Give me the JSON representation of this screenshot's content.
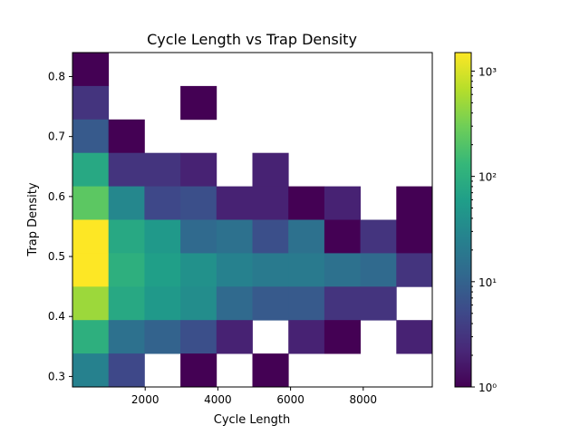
{
  "chart_data": {
    "type": "heatmap",
    "title": "Cycle Length vs Trap Density",
    "xlabel": "Cycle Length",
    "ylabel": "Trap Density",
    "x_range": [
      0,
      9900
    ],
    "y_range": [
      0.2825,
      0.84
    ],
    "x_edges": [
      0,
      990,
      1980,
      2970,
      3960,
      4950,
      5940,
      6930,
      7920,
      8910,
      9900
    ],
    "y_edges": [
      0.2825,
      0.33825,
      0.394,
      0.44975,
      0.5055,
      0.56125,
      0.617,
      0.67275,
      0.7285,
      0.78425,
      0.84
    ],
    "x_ticks": [
      2000,
      4000,
      6000,
      8000
    ],
    "y_ticks": [
      0.3,
      0.4,
      0.5,
      0.6,
      0.7,
      0.8
    ],
    "colorbar": {
      "scale": "log",
      "vmin": 1,
      "vmax": 1500,
      "ticks": [
        1,
        10,
        100,
        1000
      ],
      "tick_labels": [
        "10⁰",
        "10¹",
        "10²",
        "10³"
      ],
      "colormap": "viridis"
    },
    "counts_top_to_bottom": [
      [
        1,
        null,
        null,
        null,
        null,
        null,
        null,
        null,
        null,
        null
      ],
      [
        3,
        null,
        null,
        1,
        null,
        null,
        null,
        null,
        null,
        null
      ],
      [
        8,
        1,
        null,
        null,
        null,
        null,
        null,
        null,
        null,
        null
      ],
      [
        80,
        3,
        3,
        2,
        null,
        2,
        null,
        null,
        null,
        null
      ],
      [
        230,
        30,
        5,
        6,
        2,
        2,
        1,
        2,
        null,
        1
      ],
      [
        1500,
        80,
        50,
        12,
        15,
        6,
        15,
        1,
        3,
        1
      ],
      [
        1500,
        100,
        60,
        40,
        25,
        20,
        20,
        15,
        12,
        3
      ],
      [
        500,
        80,
        50,
        35,
        12,
        8,
        8,
        3,
        3,
        null
      ],
      [
        100,
        15,
        10,
        6,
        2,
        null,
        2,
        1,
        null,
        2
      ],
      [
        25,
        5,
        null,
        1,
        null,
        1,
        null,
        null,
        null,
        null
      ]
    ]
  }
}
